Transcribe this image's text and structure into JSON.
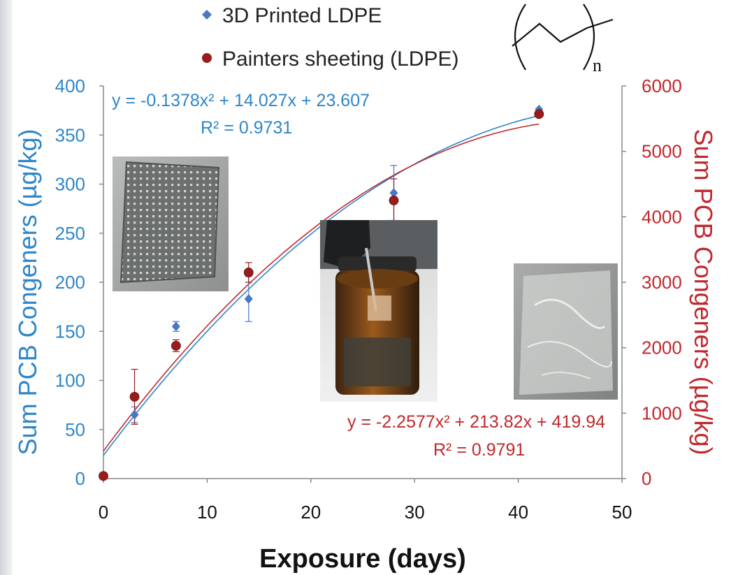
{
  "chart_data": {
    "type": "scatter",
    "title": "",
    "xlabel": "Exposure (days)",
    "xlim": [
      0,
      50
    ],
    "xticks": [
      0,
      10,
      20,
      30,
      40,
      50
    ],
    "y_left": {
      "label": "Sum PCB Congeners (µg/kg)",
      "lim": [
        0,
        400
      ],
      "ticks": [
        0,
        50,
        100,
        150,
        200,
        250,
        300,
        350,
        400
      ],
      "color": "#2e86c8"
    },
    "y_right": {
      "label": "Sum PCB Congeners (µg/kg)",
      "lim": [
        0,
        6000
      ],
      "ticks": [
        0,
        1000,
        2000,
        3000,
        4000,
        5000,
        6000
      ],
      "color": "#c0282d"
    },
    "grid": false,
    "legend_position": "top",
    "series": [
      {
        "name": "3D Printed LDPE",
        "axis": "left",
        "marker": "diamond",
        "color": "#4a78c4",
        "x": [
          0,
          3,
          7,
          14,
          28,
          42
        ],
        "y": [
          2,
          65,
          155,
          183,
          291,
          376
        ],
        "err": [
          0,
          8,
          5,
          23,
          28,
          0
        ],
        "trendline": {
          "type": "polynomial-2",
          "equation": "y = -0.1378x² + 14.027x + 23.607",
          "r2": "R² = 0.9731",
          "coeffs": [
            -0.1378,
            14.027,
            23.607
          ],
          "color": "#2e86c8"
        }
      },
      {
        "name": "Painters sheeting (LDPE)",
        "axis": "right",
        "marker": "circle",
        "color": "#9b1b1b",
        "x": [
          0,
          3,
          7,
          14,
          28,
          42
        ],
        "y": [
          40,
          1250,
          2030,
          3150,
          4250,
          5570
        ],
        "err": [
          0,
          420,
          90,
          150,
          330,
          0
        ],
        "trendline": {
          "type": "polynomial-2",
          "equation": "y = -2.2577x² + 213.82x + 419.94",
          "r2": "R² = 0.9791",
          "coeffs": [
            -2.2577,
            213.82,
            419.94
          ],
          "color": "#c0282d"
        }
      }
    ]
  },
  "polymer_structure": {
    "subscript": "n"
  }
}
